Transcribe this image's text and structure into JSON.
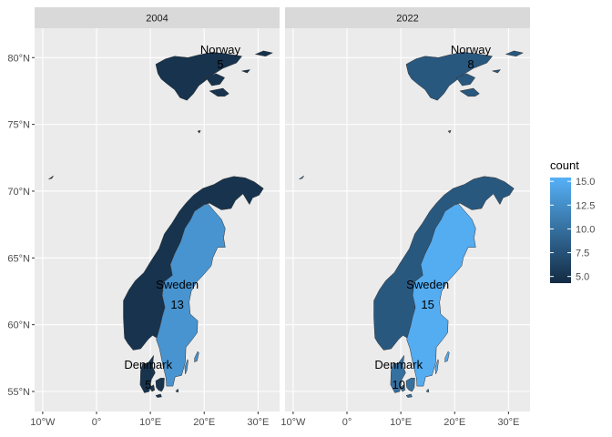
{
  "chart_data": {
    "type": "choropleth-map",
    "facets": [
      "2004",
      "2022"
    ],
    "x_axis": {
      "ticks": [
        "10°W",
        "0°",
        "10°E",
        "20°E",
        "30°E"
      ],
      "tick_values": [
        -10,
        0,
        10,
        20,
        30
      ],
      "range": [
        -11.5,
        34.0
      ]
    },
    "y_axis": {
      "ticks": [
        "55°N",
        "60°N",
        "65°N",
        "70°N",
        "75°N",
        "80°N"
      ],
      "tick_values": [
        55,
        60,
        65,
        70,
        75,
        80
      ],
      "range": [
        53.5,
        82.2
      ]
    },
    "grid": true,
    "legend": {
      "title": "count",
      "ticks": [
        "5.0",
        "7.5",
        "10.0",
        "12.5",
        "15.0"
      ],
      "tick_values": [
        5,
        7.5,
        10,
        12.5,
        15
      ],
      "range": [
        4.3,
        15.4
      ],
      "low_color": "#132B43",
      "high_color": "#56B1F7",
      "placement": "right"
    },
    "series": [
      {
        "facet": "2004",
        "regions": [
          {
            "name": "Norway",
            "count": 5
          },
          {
            "name": "Sweden",
            "count": 13
          },
          {
            "name": "Denmark",
            "count": 5
          }
        ]
      },
      {
        "facet": "2022",
        "regions": [
          {
            "name": "Norway",
            "count": 8
          },
          {
            "name": "Sweden",
            "count": 15
          },
          {
            "name": "Denmark",
            "count": 10
          }
        ]
      }
    ]
  },
  "colors": {
    "panel_bg": "#EBEBEB",
    "grid": "#FFFFFF",
    "strip_bg": "#D9D9D9",
    "border": "#333333"
  }
}
